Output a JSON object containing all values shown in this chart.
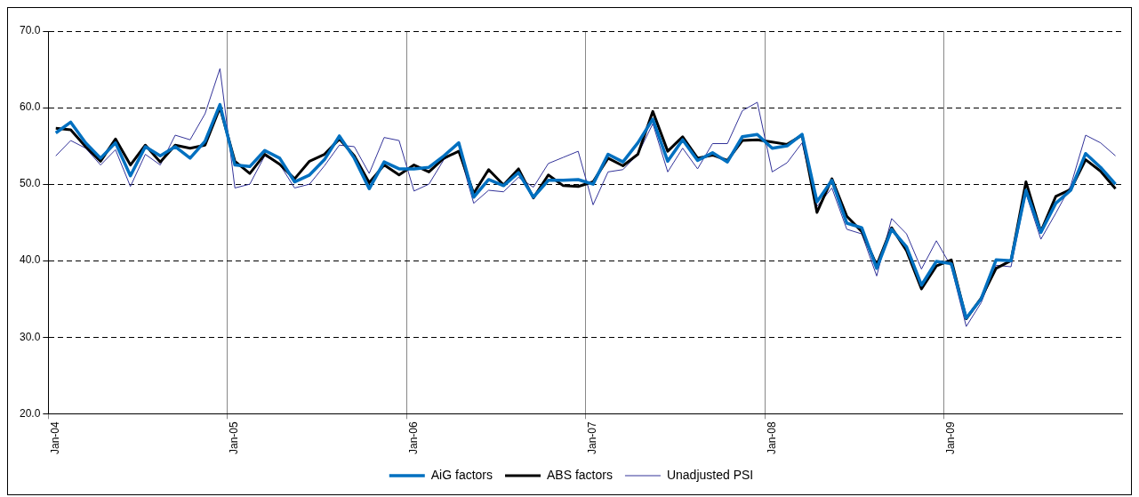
{
  "chart_data": {
    "type": "line",
    "categories": [
      "Jan-04",
      null,
      null,
      null,
      null,
      null,
      null,
      null,
      null,
      null,
      null,
      null,
      "Jan-05",
      null,
      null,
      null,
      null,
      null,
      null,
      null,
      null,
      null,
      null,
      null,
      "Jan-06",
      null,
      null,
      null,
      null,
      null,
      null,
      null,
      null,
      null,
      null,
      null,
      "Jan-07",
      null,
      null,
      null,
      null,
      null,
      null,
      null,
      null,
      null,
      null,
      null,
      "Jan-08",
      null,
      null,
      null,
      null,
      null,
      null,
      null,
      null,
      null,
      null,
      null,
      "Jan-09",
      null,
      null,
      null,
      null,
      null,
      null,
      null,
      null,
      null,
      null,
      null
    ],
    "series": [
      {
        "name": "AiG factors",
        "color": "#0070c0",
        "values": [
          56.7,
          58.1,
          55.4,
          53.4,
          55.4,
          51.1,
          54.9,
          53.7,
          54.9,
          53.4,
          55.6,
          60.4,
          52.5,
          52.3,
          54.4,
          53.4,
          50.3,
          51.2,
          53.2,
          56.3,
          53.4,
          49.4,
          52.9,
          52.0,
          52.0,
          52.2,
          53.7,
          55.4,
          48.3,
          50.6,
          49.8,
          51.5,
          48.3,
          50.5,
          50.5,
          50.6,
          50.0,
          53.9,
          52.9,
          55.4,
          58.5,
          53.0,
          55.8,
          53.1,
          54.1,
          52.9,
          56.2,
          56.5,
          54.7,
          55.0,
          56.5,
          47.7,
          50.5,
          44.9,
          44.3,
          39.0,
          44.1,
          41.8,
          36.8,
          39.9,
          39.6,
          32.5,
          35.0,
          40.1,
          40.0,
          49.2,
          43.7,
          47.5,
          49.2,
          54.0,
          52.2,
          50.0
        ]
      },
      {
        "name": "ABS factors",
        "color": "#000000",
        "values": [
          57.3,
          57.1,
          54.9,
          53.0,
          55.9,
          52.5,
          55.1,
          52.9,
          55.1,
          54.7,
          55.1,
          60.0,
          53.0,
          51.4,
          53.9,
          52.6,
          50.7,
          53.0,
          53.9,
          55.9,
          53.7,
          50.2,
          52.5,
          51.2,
          52.5,
          51.6,
          53.4,
          54.3,
          48.8,
          51.9,
          49.9,
          52.0,
          48.2,
          51.2,
          49.8,
          49.7,
          50.3,
          53.4,
          52.4,
          53.9,
          59.5,
          54.3,
          56.2,
          53.4,
          53.8,
          53.1,
          55.7,
          55.8,
          55.5,
          55.2,
          56.4,
          46.3,
          50.7,
          45.8,
          43.8,
          39.4,
          44.3,
          41.3,
          36.3,
          39.3,
          40.1,
          32.4,
          35.1,
          39.0,
          40.0,
          50.3,
          43.8,
          48.4,
          49.3,
          53.2,
          51.7,
          49.4
        ]
      },
      {
        "name": "Unadjusted PSI",
        "color": "#333399",
        "values": [
          53.7,
          55.7,
          54.7,
          52.5,
          54.5,
          49.7,
          53.9,
          52.5,
          56.4,
          55.8,
          59.2,
          65.1,
          49.5,
          50.0,
          53.7,
          52.6,
          49.5,
          50.0,
          52.4,
          55.1,
          54.9,
          51.4,
          56.1,
          55.7,
          49.1,
          50.0,
          53.2,
          54.4,
          47.5,
          49.2,
          49.0,
          50.9,
          49.6,
          52.7,
          53.5,
          54.3,
          47.3,
          51.6,
          51.9,
          53.9,
          57.9,
          51.6,
          54.7,
          52.0,
          55.3,
          55.3,
          59.6,
          60.7,
          51.6,
          52.8,
          55.4,
          47.1,
          49.5,
          44.1,
          43.5,
          38.0,
          45.5,
          43.5,
          38.9,
          42.6,
          39.2,
          31.4,
          34.5,
          39.4,
          39.2,
          48.8,
          42.8,
          46.2,
          49.8,
          56.4,
          55.4,
          53.7
        ]
      }
    ],
    "ylim": [
      20,
      70
    ],
    "yticks": [
      {
        "value": 20,
        "label": "20.0"
      },
      {
        "value": 30,
        "label": "30.0"
      },
      {
        "value": 40,
        "label": "40.0"
      },
      {
        "value": 50,
        "label": "50.0"
      },
      {
        "value": 60,
        "label": "60.0"
      },
      {
        "value": 70,
        "label": "70.0"
      }
    ],
    "grid": true,
    "legend": "bottom",
    "marker": "none",
    "line_style": "solid"
  }
}
